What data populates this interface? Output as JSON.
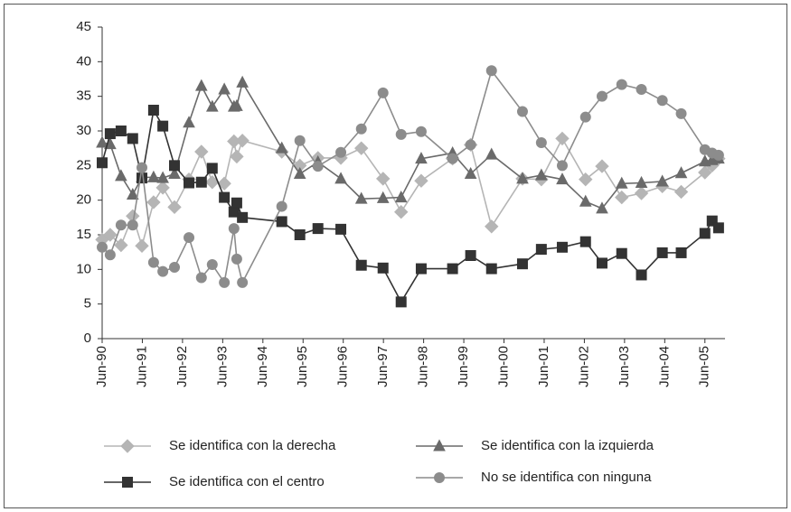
{
  "chart_data": {
    "type": "line",
    "x": [
      1990.5,
      1990.7,
      1990.97,
      1991.26,
      1991.49,
      1991.78,
      1992.01,
      1992.3,
      1992.66,
      1992.97,
      1993.24,
      1993.54,
      1993.78,
      1993.85,
      1993.99,
      1994.97,
      1995.42,
      1995.87,
      1996.44,
      1996.95,
      1997.49,
      1997.94,
      1998.44,
      1999.22,
      1999.67,
      2000.19,
      2000.96,
      2001.43,
      2001.95,
      2002.53,
      2002.94,
      2003.43,
      2003.92,
      2004.44,
      2004.91,
      2005.5,
      2005.68,
      2005.84
    ],
    "xlim": [
      1990.5,
      2006.0
    ],
    "xticks": [
      {
        "value": 1990.5,
        "label": "Jun-90"
      },
      {
        "value": 1991.5,
        "label": "Jun-91"
      },
      {
        "value": 1992.5,
        "label": "Jun-92"
      },
      {
        "value": 1993.5,
        "label": "Jun-93"
      },
      {
        "value": 1994.5,
        "label": "Jun-94"
      },
      {
        "value": 1995.5,
        "label": "Jun-95"
      },
      {
        "value": 1996.5,
        "label": "Jun-96"
      },
      {
        "value": 1997.5,
        "label": "Jun-97"
      },
      {
        "value": 1998.5,
        "label": "Jun-98"
      },
      {
        "value": 1999.5,
        "label": "Jun-99"
      },
      {
        "value": 2000.5,
        "label": "Jun-00"
      },
      {
        "value": 2001.5,
        "label": "Jun-01"
      },
      {
        "value": 2002.5,
        "label": "Jun-02"
      },
      {
        "value": 2003.5,
        "label": "Jun-03"
      },
      {
        "value": 2004.5,
        "label": "Jun-04"
      },
      {
        "value": 2005.5,
        "label": "Jun-05"
      }
    ],
    "ylim": [
      0,
      45
    ],
    "yticks": [
      0,
      5,
      10,
      15,
      20,
      25,
      30,
      35,
      40,
      45
    ],
    "series": [
      {
        "name": "Se identifica con la derecha",
        "color": "#b5b5b5",
        "marker": "diamond",
        "values": [
          14.3,
          15,
          13.5,
          17.7,
          13.4,
          19.7,
          21.8,
          19,
          23,
          27,
          22.6,
          22.4,
          28.5,
          26.3,
          28.6,
          27,
          25,
          26.1,
          26.1,
          27.5,
          23.1,
          18.3,
          22.8,
          26,
          28,
          16.2,
          23.1,
          23,
          28.9,
          23,
          24.9,
          20.4,
          21,
          22,
          21.2,
          24,
          25,
          26
        ]
      },
      {
        "name": "Se identifica con la izquierda",
        "color": "#6a6a6a",
        "marker": "triangle",
        "values": [
          28.3,
          28.1,
          23.5,
          20.8,
          23.3,
          23.3,
          23.2,
          23.8,
          31.2,
          36.5,
          33.5,
          36,
          33.5,
          33.6,
          37,
          27.5,
          23.8,
          25.5,
          23.1,
          20.2,
          20.3,
          20.4,
          26,
          26.8,
          23.8,
          26.6,
          23.1,
          23.6,
          23,
          19.8,
          18.8,
          22.4,
          22.5,
          22.7,
          23.9,
          25.6,
          25.8,
          26
        ]
      },
      {
        "name": "Se identifica con el centro",
        "color": "#333333",
        "marker": "square",
        "values": [
          25.4,
          29.6,
          30,
          28.9,
          23.2,
          33,
          30.7,
          25,
          22.5,
          22.6,
          24.6,
          20.4,
          18.3,
          19.6,
          17.5,
          16.9,
          15,
          15.9,
          15.8,
          10.6,
          10.2,
          5.3,
          10.1,
          10.1,
          12,
          10.1,
          10.8,
          12.9,
          13.2,
          14,
          10.9,
          12.3,
          9.2,
          12.4,
          12.4,
          15.2,
          17,
          16
        ]
      },
      {
        "name": "No se identifica con ninguna",
        "color": "#8c8c8c",
        "marker": "circle",
        "values": [
          13.2,
          12.1,
          16.4,
          16.4,
          24.7,
          11,
          9.7,
          10.3,
          14.6,
          8.8,
          10.7,
          8.1,
          15.9,
          11.5,
          8.1,
          19.1,
          28.6,
          24.9,
          26.9,
          30.3,
          35.5,
          29.5,
          29.9,
          26,
          28,
          38.7,
          32.8,
          28.3,
          25,
          32,
          35,
          36.7,
          36,
          34.4,
          32.5,
          27.3,
          26.8,
          26.5
        ]
      }
    ]
  }
}
